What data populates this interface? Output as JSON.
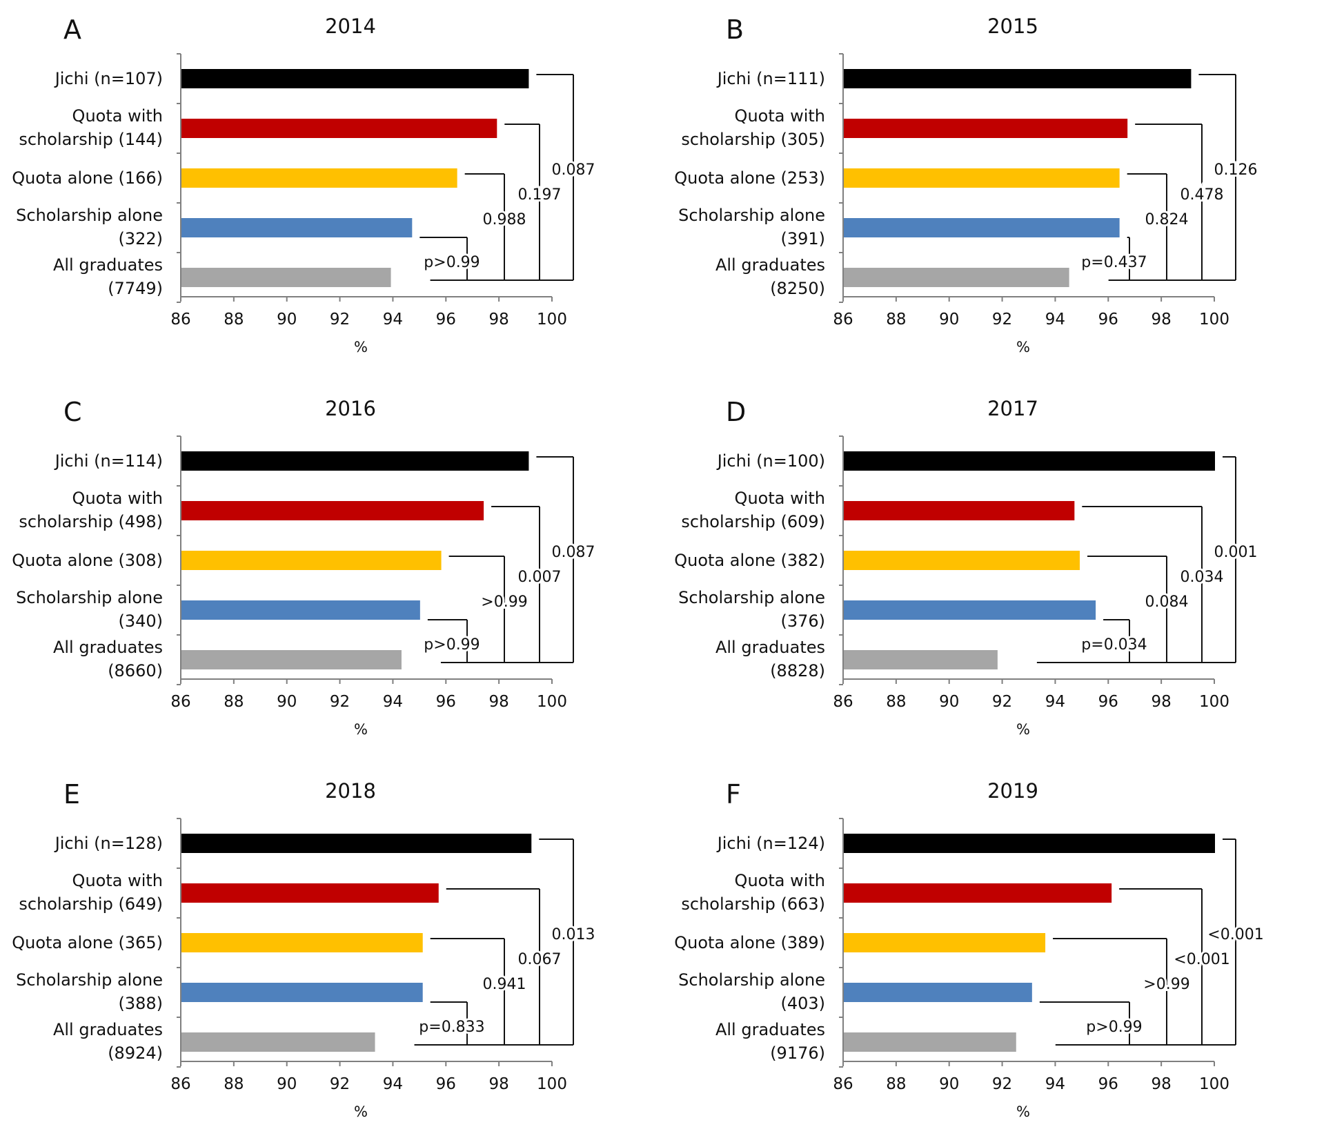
{
  "chart_data": [
    {
      "panel": "A",
      "type": "bar",
      "orientation": "horizontal",
      "title": "2014",
      "xlabel": "%",
      "xlim": [
        86,
        100
      ],
      "xticks": [
        "86",
        "88",
        "90",
        "92",
        "94",
        "96",
        "98",
        "100"
      ],
      "categories": [
        [
          "Jichi (n=107)"
        ],
        [
          "Quota with",
          "scholarship (144)"
        ],
        [
          "Quota alone (166)"
        ],
        [
          "Scholarship alone",
          "(322)"
        ],
        [
          "All graduates",
          "(7749)"
        ]
      ],
      "values": [
        99.1,
        97.9,
        96.4,
        94.7,
        93.9
      ],
      "colors": [
        "#000000",
        "#c00000",
        "#ffc000",
        "#4f81bd",
        "#a6a6a6"
      ],
      "comparisons": [
        {
          "group": "Scholarship alone (322)",
          "vs": "All graduates (7749)",
          "p": "p>0.99"
        },
        {
          "group": "Quota alone (166)",
          "vs": "All graduates (7749)",
          "p": "0.988"
        },
        {
          "group": "Quota with scholarship (144)",
          "vs": "All graduates (7749)",
          "p": "0.197"
        },
        {
          "group": "Jichi (n=107)",
          "vs": "All graduates (7749)",
          "p": "0.087"
        }
      ]
    },
    {
      "panel": "B",
      "type": "bar",
      "orientation": "horizontal",
      "title": "2015",
      "xlabel": "%",
      "xlim": [
        86,
        100
      ],
      "xticks": [
        "86",
        "88",
        "90",
        "92",
        "94",
        "96",
        "98",
        "100"
      ],
      "categories": [
        [
          "Jichi (n=111)"
        ],
        [
          "Quota with",
          "scholarship (305)"
        ],
        [
          "Quota alone (253)"
        ],
        [
          "Scholarship alone",
          "(391)"
        ],
        [
          "All graduates",
          "(8250)"
        ]
      ],
      "values": [
        99.1,
        96.7,
        96.4,
        96.4,
        94.5
      ],
      "colors": [
        "#000000",
        "#c00000",
        "#ffc000",
        "#4f81bd",
        "#a6a6a6"
      ],
      "comparisons": [
        {
          "group": "Scholarship alone (391)",
          "vs": "All graduates (8250)",
          "p": "p=0.437"
        },
        {
          "group": "Quota alone (253)",
          "vs": "All graduates (8250)",
          "p": "0.824"
        },
        {
          "group": "Quota with scholarship (305)",
          "vs": "All graduates (8250)",
          "p": "0.478"
        },
        {
          "group": "Jichi (n=111)",
          "vs": "All graduates (8250)",
          "p": "0.126"
        }
      ]
    },
    {
      "panel": "C",
      "type": "bar",
      "orientation": "horizontal",
      "title": "2016",
      "xlabel": "%",
      "xlim": [
        86,
        100
      ],
      "xticks": [
        "86",
        "88",
        "90",
        "92",
        "94",
        "96",
        "98",
        "100"
      ],
      "categories": [
        [
          "Jichi (n=114)"
        ],
        [
          "Quota with",
          "scholarship (498)"
        ],
        [
          "Quota alone (308)"
        ],
        [
          "Scholarship alone",
          "(340)"
        ],
        [
          "All graduates",
          "(8660)"
        ]
      ],
      "values": [
        99.1,
        97.4,
        95.8,
        95.0,
        94.3
      ],
      "colors": [
        "#000000",
        "#c00000",
        "#ffc000",
        "#4f81bd",
        "#a6a6a6"
      ],
      "comparisons": [
        {
          "group": "Scholarship alone (340)",
          "vs": "All graduates (8660)",
          "p": "p>0.99"
        },
        {
          "group": "Quota alone (308)",
          "vs": "All graduates (8660)",
          "p": ">0.99"
        },
        {
          "group": "Quota with scholarship (498)",
          "vs": "All graduates (8660)",
          "p": "0.007"
        },
        {
          "group": "Jichi (n=114)",
          "vs": "All graduates (8660)",
          "p": "0.087"
        }
      ]
    },
    {
      "panel": "D",
      "type": "bar",
      "orientation": "horizontal",
      "title": "2017",
      "xlabel": "%",
      "xlim": [
        86,
        100
      ],
      "xticks": [
        "86",
        "88",
        "90",
        "92",
        "94",
        "96",
        "98",
        "100"
      ],
      "categories": [
        [
          "Jichi (n=100)"
        ],
        [
          "Quota with",
          "scholarship (609)"
        ],
        [
          "Quota alone (382)"
        ],
        [
          "Scholarship alone",
          "(376)"
        ],
        [
          "All graduates",
          "(8828)"
        ]
      ],
      "values": [
        100.0,
        94.7,
        94.9,
        95.5,
        91.8
      ],
      "colors": [
        "#000000",
        "#c00000",
        "#ffc000",
        "#4f81bd",
        "#a6a6a6"
      ],
      "comparisons": [
        {
          "group": "Scholarship alone (376)",
          "vs": "All graduates (8828)",
          "p": "p=0.034"
        },
        {
          "group": "Quota alone (382)",
          "vs": "All graduates (8828)",
          "p": "0.084"
        },
        {
          "group": "Quota with scholarship (609)",
          "vs": "All graduates (8828)",
          "p": "0.034"
        },
        {
          "group": "Jichi (n=100)",
          "vs": "All graduates (8828)",
          "p": "0.001"
        }
      ]
    },
    {
      "panel": "E",
      "type": "bar",
      "orientation": "horizontal",
      "title": "2018",
      "xlabel": "%",
      "xlim": [
        86,
        100
      ],
      "xticks": [
        "86",
        "88",
        "90",
        "92",
        "94",
        "96",
        "98",
        "100"
      ],
      "categories": [
        [
          "Jichi (n=128)"
        ],
        [
          "Quota with",
          "scholarship (649)"
        ],
        [
          "Quota alone (365)"
        ],
        [
          "Scholarship alone",
          "(388)"
        ],
        [
          "All graduates",
          "(8924)"
        ]
      ],
      "values": [
        99.2,
        95.7,
        95.1,
        95.1,
        93.3
      ],
      "colors": [
        "#000000",
        "#c00000",
        "#ffc000",
        "#4f81bd",
        "#a6a6a6"
      ],
      "comparisons": [
        {
          "group": "Scholarship alone (388)",
          "vs": "All graduates (8924)",
          "p": "p=0.833"
        },
        {
          "group": "Quota alone (365)",
          "vs": "All graduates (8924)",
          "p": "0.941"
        },
        {
          "group": "Quota with scholarship (649)",
          "vs": "All graduates (8924)",
          "p": "0.067"
        },
        {
          "group": "Jichi (n=128)",
          "vs": "All graduates (8924)",
          "p": "0.013"
        }
      ]
    },
    {
      "panel": "F",
      "type": "bar",
      "orientation": "horizontal",
      "title": "2019",
      "xlabel": "%",
      "xlim": [
        86,
        100
      ],
      "xticks": [
        "86",
        "88",
        "90",
        "92",
        "94",
        "96",
        "98",
        "100"
      ],
      "categories": [
        [
          "Jichi (n=124)"
        ],
        [
          "Quota with",
          "scholarship (663)"
        ],
        [
          "Quota alone (389)"
        ],
        [
          "Scholarship alone",
          "(403)"
        ],
        [
          "All graduates",
          "(9176)"
        ]
      ],
      "values": [
        100.0,
        96.1,
        93.6,
        93.1,
        92.5
      ],
      "colors": [
        "#000000",
        "#c00000",
        "#ffc000",
        "#4f81bd",
        "#a6a6a6"
      ],
      "comparisons": [
        {
          "group": "Scholarship alone (403)",
          "vs": "All graduates (9176)",
          "p": "p>0.99"
        },
        {
          "group": "Quota alone (389)",
          "vs": "All graduates (9176)",
          "p": ">0.99"
        },
        {
          "group": "Quota with scholarship (663)",
          "vs": "All graduates (9176)",
          "p": "<0.001"
        },
        {
          "group": "Jichi (n=124)",
          "vs": "All graduates (9176)",
          "p": "<0.001"
        }
      ]
    }
  ]
}
